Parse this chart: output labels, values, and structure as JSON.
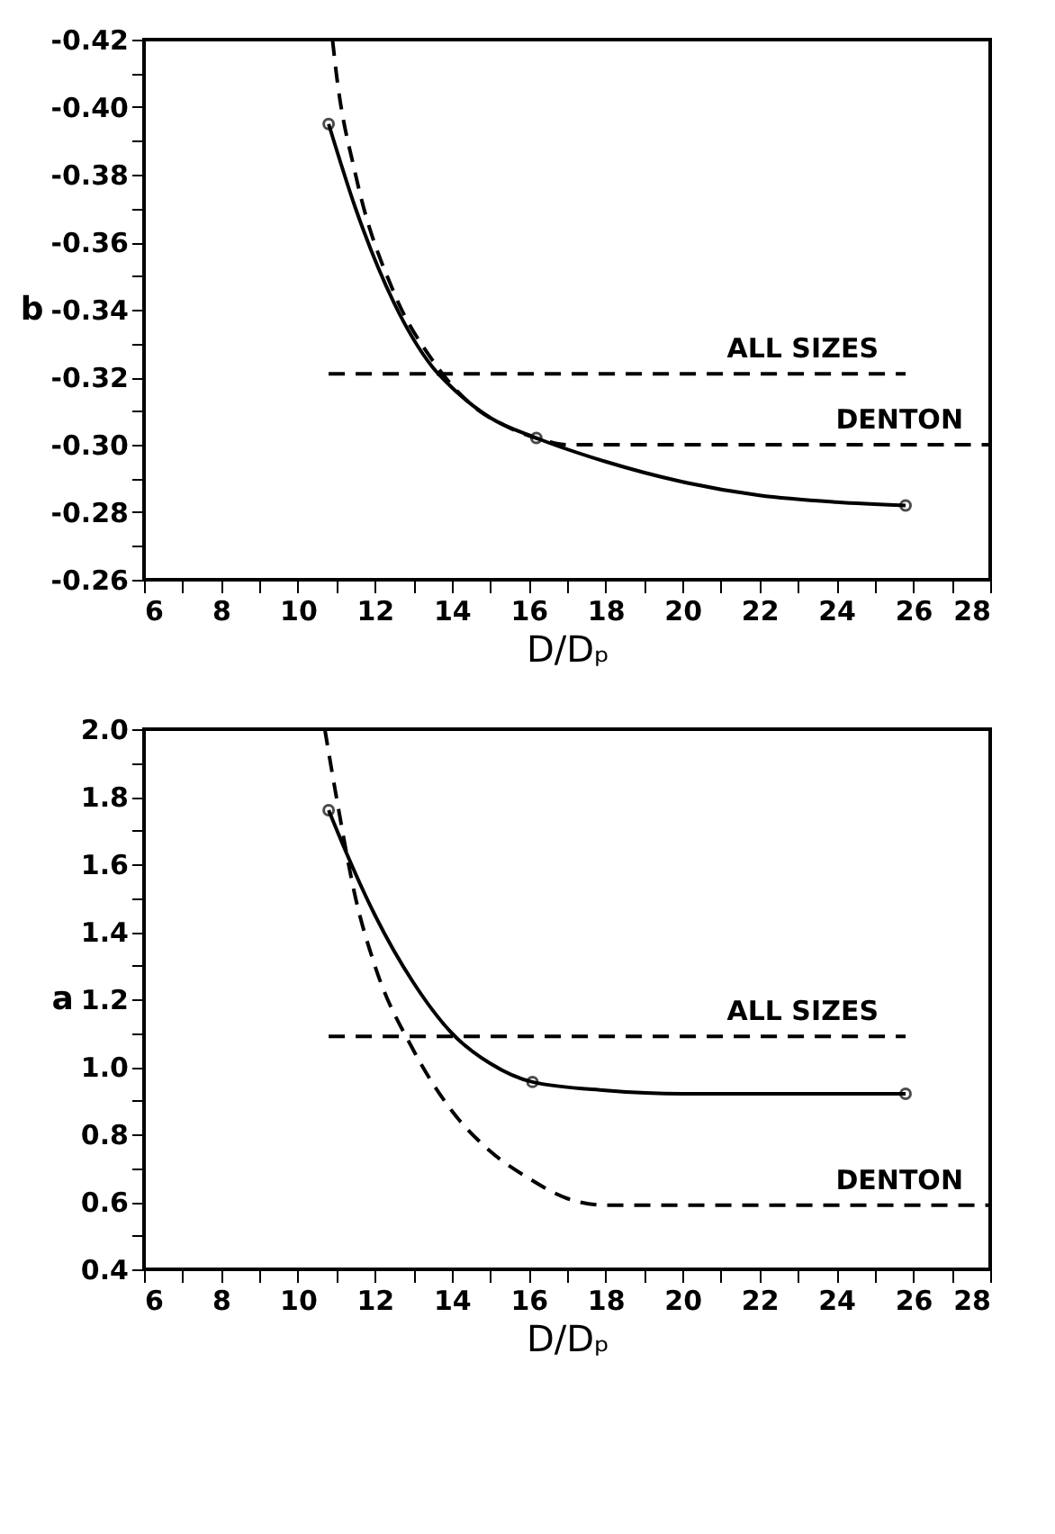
{
  "chart_data": [
    {
      "type": "line",
      "xlabel": "D/Dₚ",
      "ylabel": "b",
      "xlim": [
        6,
        28
      ],
      "ylim": [
        -0.26,
        -0.42
      ],
      "grid": false,
      "xticks": [
        6,
        {
          "value": 7,
          "label": null
        },
        8,
        {
          "value": 9,
          "label": null
        },
        10,
        {
          "value": 11,
          "label": null
        },
        12,
        {
          "value": 13,
          "label": null
        },
        14,
        {
          "value": 15,
          "label": null
        },
        16,
        {
          "value": 17,
          "label": null
        },
        18,
        {
          "value": 19,
          "label": null
        },
        20,
        {
          "value": 21,
          "label": null
        },
        22,
        {
          "value": 23,
          "label": null
        },
        24,
        {
          "value": 25,
          "label": null
        },
        26,
        {
          "value": 27,
          "label": null
        },
        28
      ],
      "yticks": [
        -0.26,
        {
          "value": -0.27,
          "label": null
        },
        -0.28,
        {
          "value": -0.29,
          "label": null
        },
        {
          "value": -0.3,
          "label": "-0.30"
        },
        {
          "value": -0.31,
          "label": null
        },
        -0.32,
        {
          "value": -0.33,
          "label": null
        },
        -0.34,
        {
          "value": -0.35,
          "label": null
        },
        -0.36,
        {
          "value": -0.37,
          "label": null
        },
        -0.38,
        {
          "value": -0.39,
          "label": null
        },
        {
          "value": -0.4,
          "label": "-0.40"
        },
        {
          "value": -0.41,
          "label": null
        },
        -0.42
      ],
      "series": [
        {
          "type": "scatter",
          "marker": "circle",
          "color": "#000000",
          "x": [
            10.8,
            16.2,
            25.8
          ],
          "values": [
            -0.395,
            -0.302,
            -0.282
          ]
        },
        {
          "type": "line",
          "line_style": "solid",
          "color": "#000000",
          "x": [
            10.8,
            11.5,
            12.5,
            13.5,
            14,
            15,
            16.2,
            18,
            20,
            22,
            24,
            25.8
          ],
          "values": [
            -0.395,
            -0.37,
            -0.342,
            -0.323,
            -0.317,
            -0.308,
            -0.302,
            -0.295,
            -0.289,
            -0.285,
            -0.283,
            -0.282
          ]
        },
        {
          "type": "line",
          "name": "ALL SIZES",
          "line_style": "dashed",
          "color": "#000000",
          "x": [
            10.8,
            25.8
          ],
          "values": [
            -0.321,
            -0.321
          ]
        },
        {
          "type": "line",
          "name": "DENTON",
          "line_style": "dashed",
          "color": "#000000",
          "x": [
            10.9,
            11,
            11.5,
            12.5,
            13.5,
            14.5,
            15.5,
            16.5,
            17,
            28
          ],
          "values": [
            -0.42,
            -0.41,
            -0.38,
            -0.345,
            -0.325,
            -0.312,
            -0.305,
            -0.301,
            -0.3,
            -0.3
          ]
        }
      ]
    },
    {
      "type": "line",
      "xlabel": "D/Dₚ",
      "ylabel": "a",
      "xlim": [
        6,
        28
      ],
      "ylim": [
        0.4,
        2.0
      ],
      "grid": false,
      "xticks": [
        6,
        {
          "value": 7,
          "label": null
        },
        8,
        {
          "value": 9,
          "label": null
        },
        10,
        {
          "value": 11,
          "label": null
        },
        12,
        {
          "value": 13,
          "label": null
        },
        14,
        {
          "value": 15,
          "label": null
        },
        16,
        {
          "value": 17,
          "label": null
        },
        18,
        {
          "value": 19,
          "label": null
        },
        20,
        {
          "value": 21,
          "label": null
        },
        22,
        {
          "value": 23,
          "label": null
        },
        24,
        {
          "value": 25,
          "label": null
        },
        26,
        {
          "value": 27,
          "label": null
        },
        28
      ],
      "yticks": [
        0.4,
        {
          "value": 0.5,
          "label": null
        },
        0.6,
        {
          "value": 0.7,
          "label": null
        },
        0.8,
        {
          "value": 0.9,
          "label": null
        },
        {
          "value": 1,
          "label": "1.0"
        },
        {
          "value": 1.1,
          "label": null
        },
        1.2,
        {
          "value": 1.3,
          "label": null
        },
        1.4,
        {
          "value": 1.5,
          "label": null
        },
        1.6,
        {
          "value": 1.7,
          "label": null
        },
        1.8,
        {
          "value": 1.9,
          "label": null
        },
        {
          "value": 2,
          "label": "2.0"
        }
      ],
      "series": [
        {
          "type": "scatter",
          "marker": "circle",
          "color": "#000000",
          "x": [
            10.8,
            16.1,
            25.8
          ],
          "values": [
            1.76,
            0.955,
            0.92
          ]
        },
        {
          "type": "line",
          "line_style": "solid",
          "color": "#000000",
          "x": [
            10.8,
            11.2,
            12,
            13,
            14,
            15,
            16.1,
            18,
            20,
            22,
            25.8
          ],
          "values": [
            1.76,
            1.65,
            1.45,
            1.25,
            1.1,
            1.01,
            0.955,
            0.93,
            0.92,
            0.92,
            0.92
          ]
        },
        {
          "type": "line",
          "name": "ALL SIZES",
          "line_style": "dashed",
          "color": "#000000",
          "x": [
            10.8,
            25.8
          ],
          "values": [
            1.09,
            1.09
          ]
        },
        {
          "type": "line",
          "name": "DENTON",
          "line_style": "dashed",
          "color": "#000000",
          "x": [
            10.7,
            11,
            11.5,
            12,
            13,
            14,
            15,
            16,
            17,
            18,
            19,
            28
          ],
          "values": [
            2.0,
            1.8,
            1.5,
            1.3,
            1.05,
            0.87,
            0.75,
            0.67,
            0.61,
            0.59,
            0.59,
            0.59
          ]
        }
      ]
    }
  ]
}
